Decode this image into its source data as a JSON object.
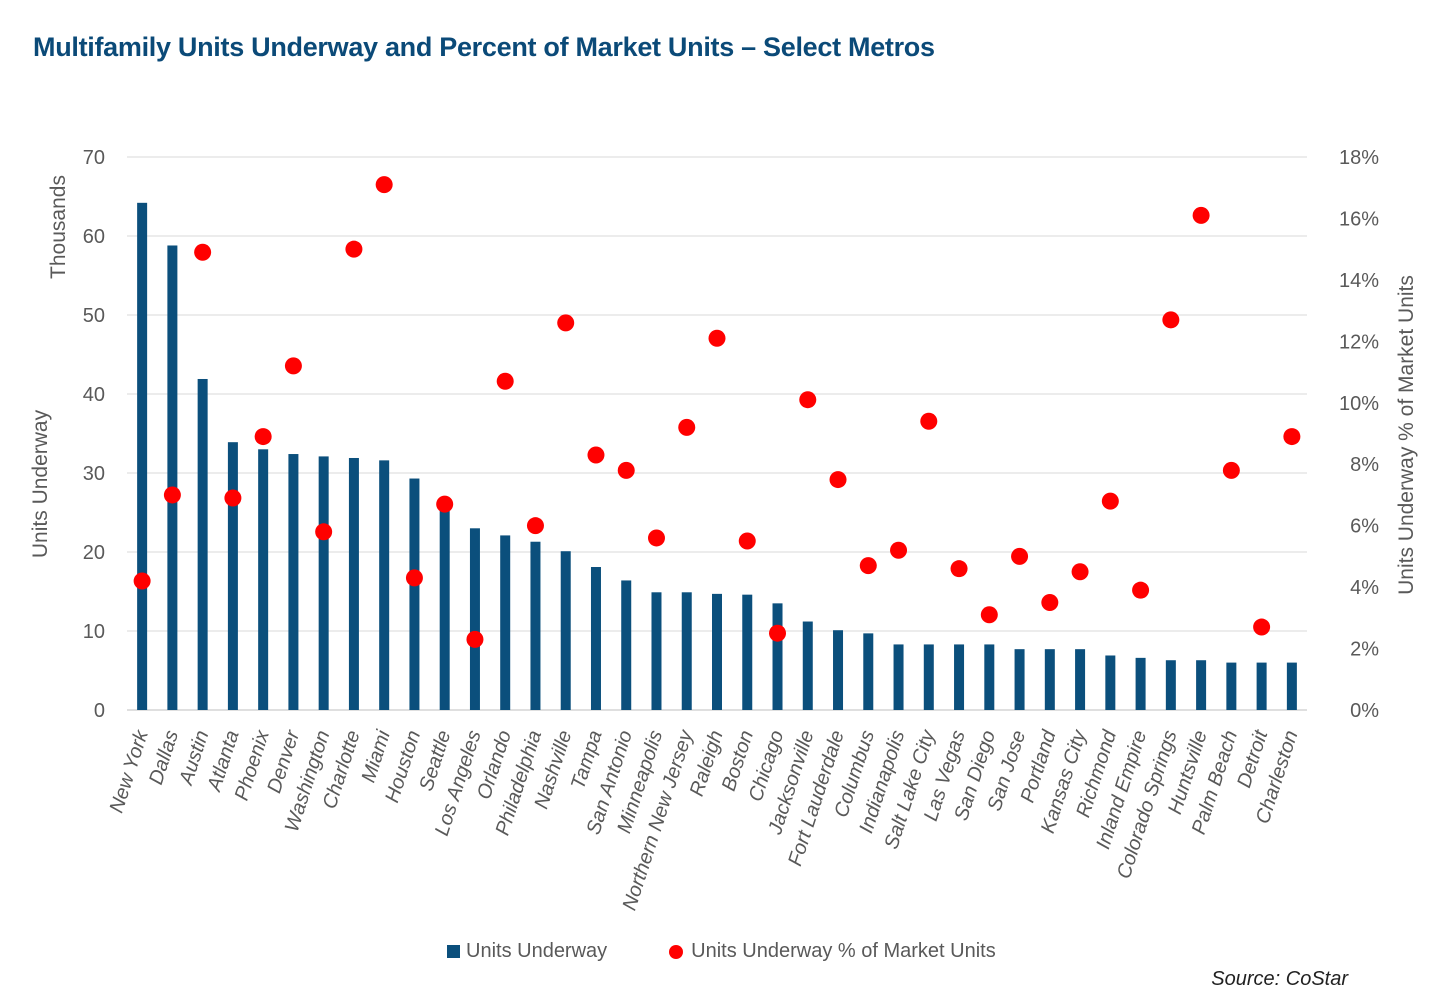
{
  "title": "Multifamily Units Underway and Percent of Market Units – Select Metros",
  "source": "Source: CoStar",
  "legend": {
    "bar_label": "Units Underway",
    "dot_label": "Units Underway % of Market Units"
  },
  "chart_data": {
    "type": "bar",
    "title": "Multifamily Units Underway and Percent of Market Units – Select Metros",
    "categories": [
      "New York",
      "Dallas",
      "Austin",
      "Atlanta",
      "Phoenix",
      "Denver",
      "Washington",
      "Charlotte",
      "Miami",
      "Houston",
      "Seattle",
      "Los Angeles",
      "Orlando",
      "Philadelphia",
      "Nashville",
      "Tampa",
      "San Antonio",
      "Minneapolis",
      "Northern New Jersey",
      "Raleigh",
      "Boston",
      "Chicago",
      "Jacksonville",
      "Fort Lauderdale",
      "Columbus",
      "Indianapolis",
      "Salt Lake City",
      "Las Vegas",
      "San Diego",
      "San Jose",
      "Portland",
      "Kansas City",
      "Richmond",
      "Inland Empire",
      "Colorado Springs",
      "Huntsville",
      "Palm Beach",
      "Detroit",
      "Charleston"
    ],
    "series": [
      {
        "name": "Units Underway",
        "type": "bar",
        "axis": "left",
        "color": "#0b4f7c",
        "values": [
          64.2,
          58.8,
          41.9,
          33.9,
          33.0,
          32.4,
          32.1,
          31.9,
          31.6,
          29.3,
          25.2,
          23.0,
          22.1,
          21.3,
          20.1,
          18.1,
          16.4,
          14.9,
          14.9,
          14.7,
          14.6,
          13.5,
          11.2,
          10.1,
          9.7,
          8.3,
          8.3,
          8.3,
          8.3,
          7.7,
          7.7,
          7.7,
          6.9,
          6.6,
          6.3,
          6.3,
          6.0,
          6.0,
          6.0
        ]
      },
      {
        "name": "Units Underway % of Market Units",
        "type": "scatter",
        "axis": "right",
        "color": "#ff0000",
        "values": [
          4.2,
          7.0,
          14.9,
          6.9,
          8.9,
          11.2,
          5.8,
          15.0,
          17.1,
          4.3,
          6.7,
          2.3,
          10.7,
          6.0,
          12.6,
          8.3,
          7.8,
          5.6,
          9.2,
          12.1,
          5.5,
          2.5,
          10.1,
          7.5,
          4.7,
          5.2,
          9.4,
          4.6,
          3.1,
          5.0,
          3.5,
          4.5,
          6.8,
          3.9,
          12.7,
          16.1,
          7.8,
          2.7,
          8.9
        ]
      }
    ],
    "y_left": {
      "label": "Units Underway",
      "unit_label": "Thousands",
      "lim": [
        0,
        70
      ],
      "ticks": [
        "0",
        "10",
        "20",
        "30",
        "40",
        "50",
        "60",
        "70"
      ]
    },
    "y_right": {
      "label": "Units Underway % of Market Units",
      "lim": [
        0,
        18
      ],
      "ticks": [
        "0%",
        "2%",
        "4%",
        "6%",
        "8%",
        "10%",
        "12%",
        "14%",
        "16%",
        "18%"
      ]
    },
    "grid": true,
    "legend_position": "bottom"
  }
}
